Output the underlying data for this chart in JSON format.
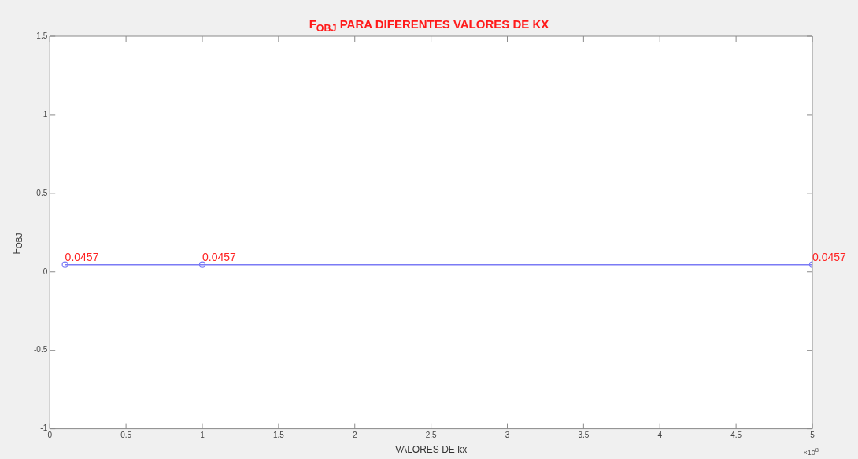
{
  "chart_data": {
    "type": "line",
    "title": "F$_{OBJ}$ PARA DIFERENTES VALORES DE KX",
    "xlabel": "VALORES DE kx",
    "ylabel": "F$_{OBJ}$",
    "x": [
      0.1,
      1,
      5
    ],
    "series": [
      {
        "color": "#7b7bf5",
        "values": [
          0.0457,
          0.0457,
          0.0457
        ],
        "value_labels": [
          "0.0457",
          "0.0457",
          "0.0457"
        ]
      }
    ],
    "xlim": [
      0,
      5
    ],
    "xticks": [
      0,
      0.5,
      1,
      1.5,
      2,
      2.5,
      3,
      3.5,
      4,
      4.5,
      5
    ],
    "ylim": [
      -1,
      1.5
    ],
    "yticks": [
      -1,
      -0.5,
      0,
      0.5,
      1,
      1.5
    ],
    "marker": "circle",
    "line_style": "solid",
    "grid": false,
    "legend": false,
    "annotations": [
      "×10$^{8}$"
    ]
  }
}
